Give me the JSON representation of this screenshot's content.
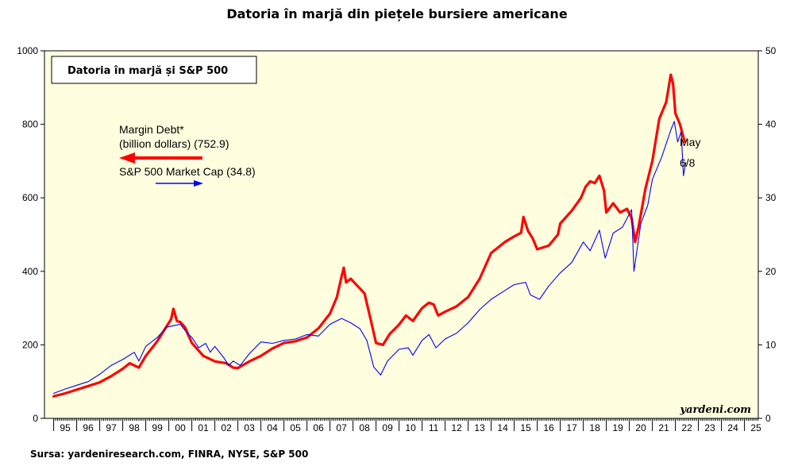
{
  "page": {
    "title": "Datoria în marjă din piețele bursiere americane",
    "source": "Sursa: yardeniresearch.com, FINRA, NYSE, S&P 500"
  },
  "colors": {
    "plot_background": "#ffffe0",
    "margin_debt": "#ff0000",
    "market_cap": "#0000ff"
  },
  "chart_data": {
    "type": "line",
    "title": "Datoria în marjă și S&P 500",
    "watermark": "yardeni.com",
    "x_range": [
      1994.6,
      2025.6
    ],
    "y_left": {
      "range": [
        0,
        1000
      ],
      "ticks": [
        0,
        200,
        400,
        600,
        800,
        1000
      ]
    },
    "y_right": {
      "range": [
        0,
        50
      ],
      "ticks": [
        0,
        10,
        20,
        30,
        40,
        50
      ]
    },
    "x_ticks": [
      "95",
      "96",
      "97",
      "98",
      "99",
      "00",
      "01",
      "02",
      "03",
      "04",
      "05",
      "06",
      "07",
      "08",
      "09",
      "10",
      "11",
      "12",
      "13",
      "14",
      "15",
      "16",
      "17",
      "18",
      "19",
      "20",
      "21",
      "22",
      "23",
      "24",
      "25"
    ],
    "series": [
      {
        "name": "Margin Debt",
        "legend_line1": "Margin Debt*",
        "legend_line2": "(billion dollars) (752.9)",
        "axis": "left",
        "color": "#ff0000",
        "end_label": "May",
        "points": [
          [
            1995.0,
            60
          ],
          [
            1995.5,
            68
          ],
          [
            1996.0,
            78
          ],
          [
            1996.5,
            88
          ],
          [
            1997.0,
            98
          ],
          [
            1997.5,
            115
          ],
          [
            1998.0,
            135
          ],
          [
            1998.3,
            150
          ],
          [
            1998.7,
            138
          ],
          [
            1999.0,
            170
          ],
          [
            1999.5,
            210
          ],
          [
            1999.8,
            240
          ],
          [
            2000.1,
            270
          ],
          [
            2000.2,
            298
          ],
          [
            2000.35,
            265
          ],
          [
            2000.5,
            262
          ],
          [
            2000.7,
            248
          ],
          [
            2001.0,
            205
          ],
          [
            2001.5,
            170
          ],
          [
            2002.0,
            155
          ],
          [
            2002.5,
            150
          ],
          [
            2002.8,
            138
          ],
          [
            2003.0,
            137
          ],
          [
            2003.5,
            155
          ],
          [
            2004.0,
            170
          ],
          [
            2004.5,
            190
          ],
          [
            2005.0,
            205
          ],
          [
            2005.5,
            210
          ],
          [
            2006.0,
            220
          ],
          [
            2006.5,
            245
          ],
          [
            2007.0,
            285
          ],
          [
            2007.3,
            330
          ],
          [
            2007.5,
            385
          ],
          [
            2007.6,
            410
          ],
          [
            2007.7,
            370
          ],
          [
            2007.9,
            380
          ],
          [
            2008.2,
            360
          ],
          [
            2008.5,
            340
          ],
          [
            2008.8,
            260
          ],
          [
            2009.0,
            205
          ],
          [
            2009.3,
            200
          ],
          [
            2009.6,
            230
          ],
          [
            2010.0,
            255
          ],
          [
            2010.3,
            280
          ],
          [
            2010.6,
            265
          ],
          [
            2011.0,
            300
          ],
          [
            2011.3,
            315
          ],
          [
            2011.5,
            310
          ],
          [
            2011.7,
            280
          ],
          [
            2012.0,
            290
          ],
          [
            2012.5,
            305
          ],
          [
            2012.8,
            320
          ],
          [
            2013.0,
            330
          ],
          [
            2013.5,
            380
          ],
          [
            2014.0,
            450
          ],
          [
            2014.3,
            465
          ],
          [
            2014.6,
            480
          ],
          [
            2015.0,
            495
          ],
          [
            2015.3,
            505
          ],
          [
            2015.4,
            548
          ],
          [
            2015.6,
            510
          ],
          [
            2015.8,
            490
          ],
          [
            2016.0,
            460
          ],
          [
            2016.5,
            470
          ],
          [
            2016.9,
            500
          ],
          [
            2017.0,
            530
          ],
          [
            2017.5,
            565
          ],
          [
            2017.9,
            600
          ],
          [
            2018.1,
            630
          ],
          [
            2018.3,
            645
          ],
          [
            2018.5,
            640
          ],
          [
            2018.7,
            660
          ],
          [
            2018.9,
            620
          ],
          [
            2019.0,
            560
          ],
          [
            2019.3,
            585
          ],
          [
            2019.6,
            560
          ],
          [
            2019.9,
            570
          ],
          [
            2020.1,
            545
          ],
          [
            2020.25,
            480
          ],
          [
            2020.4,
            520
          ],
          [
            2020.7,
            625
          ],
          [
            2021.0,
            700
          ],
          [
            2021.3,
            815
          ],
          [
            2021.6,
            860
          ],
          [
            2021.8,
            935
          ],
          [
            2021.9,
            910
          ],
          [
            2022.0,
            830
          ],
          [
            2022.2,
            800
          ],
          [
            2022.4,
            752.9
          ]
        ]
      },
      {
        "name": "S&P 500 Market Cap",
        "legend_line1": "S&P 500 Market Cap (34.8)",
        "axis": "right",
        "color": "#0000ff",
        "end_label": "6/8",
        "points": [
          [
            1995.0,
            3.4
          ],
          [
            1995.5,
            4.0
          ],
          [
            1996.0,
            4.5
          ],
          [
            1996.5,
            5.0
          ],
          [
            1997.0,
            6.0
          ],
          [
            1997.5,
            7.2
          ],
          [
            1998.0,
            8.0
          ],
          [
            1998.5,
            9.0
          ],
          [
            1998.7,
            7.8
          ],
          [
            1999.0,
            9.8
          ],
          [
            1999.5,
            11.0
          ],
          [
            1999.9,
            12.4
          ],
          [
            2000.2,
            12.6
          ],
          [
            2000.5,
            12.8
          ],
          [
            2000.8,
            11.6
          ],
          [
            2001.0,
            11.0
          ],
          [
            2001.3,
            9.6
          ],
          [
            2001.6,
            10.2
          ],
          [
            2001.8,
            9.0
          ],
          [
            2002.0,
            9.8
          ],
          [
            2002.4,
            8.2
          ],
          [
            2002.6,
            7.2
          ],
          [
            2002.8,
            7.8
          ],
          [
            2003.1,
            7.2
          ],
          [
            2003.5,
            8.8
          ],
          [
            2004.0,
            10.4
          ],
          [
            2004.5,
            10.2
          ],
          [
            2005.0,
            10.6
          ],
          [
            2005.5,
            10.8
          ],
          [
            2006.0,
            11.4
          ],
          [
            2006.5,
            11.2
          ],
          [
            2007.0,
            12.8
          ],
          [
            2007.5,
            13.6
          ],
          [
            2007.9,
            13.0
          ],
          [
            2008.3,
            12.2
          ],
          [
            2008.6,
            10.6
          ],
          [
            2008.9,
            7.0
          ],
          [
            2009.2,
            5.9
          ],
          [
            2009.5,
            7.8
          ],
          [
            2010.0,
            9.4
          ],
          [
            2010.4,
            9.6
          ],
          [
            2010.6,
            8.6
          ],
          [
            2011.0,
            10.6
          ],
          [
            2011.3,
            11.4
          ],
          [
            2011.6,
            9.6
          ],
          [
            2012.0,
            10.8
          ],
          [
            2012.5,
            11.6
          ],
          [
            2013.0,
            13.0
          ],
          [
            2013.5,
            14.8
          ],
          [
            2014.0,
            16.2
          ],
          [
            2014.5,
            17.2
          ],
          [
            2015.0,
            18.2
          ],
          [
            2015.5,
            18.5
          ],
          [
            2015.7,
            16.8
          ],
          [
            2016.1,
            16.2
          ],
          [
            2016.5,
            18.0
          ],
          [
            2017.0,
            19.8
          ],
          [
            2017.5,
            21.2
          ],
          [
            2018.0,
            24.0
          ],
          [
            2018.3,
            22.8
          ],
          [
            2018.7,
            25.6
          ],
          [
            2018.95,
            21.8
          ],
          [
            2019.3,
            25.2
          ],
          [
            2019.7,
            26.0
          ],
          [
            2020.1,
            28.4
          ],
          [
            2020.2,
            20.0
          ],
          [
            2020.5,
            26.5
          ],
          [
            2020.8,
            29.0
          ],
          [
            2021.0,
            32.5
          ],
          [
            2021.4,
            35.5
          ],
          [
            2021.8,
            39.2
          ],
          [
            2021.95,
            40.4
          ],
          [
            2022.1,
            37.6
          ],
          [
            2022.25,
            39.0
          ],
          [
            2022.35,
            33.0
          ],
          [
            2022.45,
            34.8
          ]
        ]
      }
    ]
  }
}
